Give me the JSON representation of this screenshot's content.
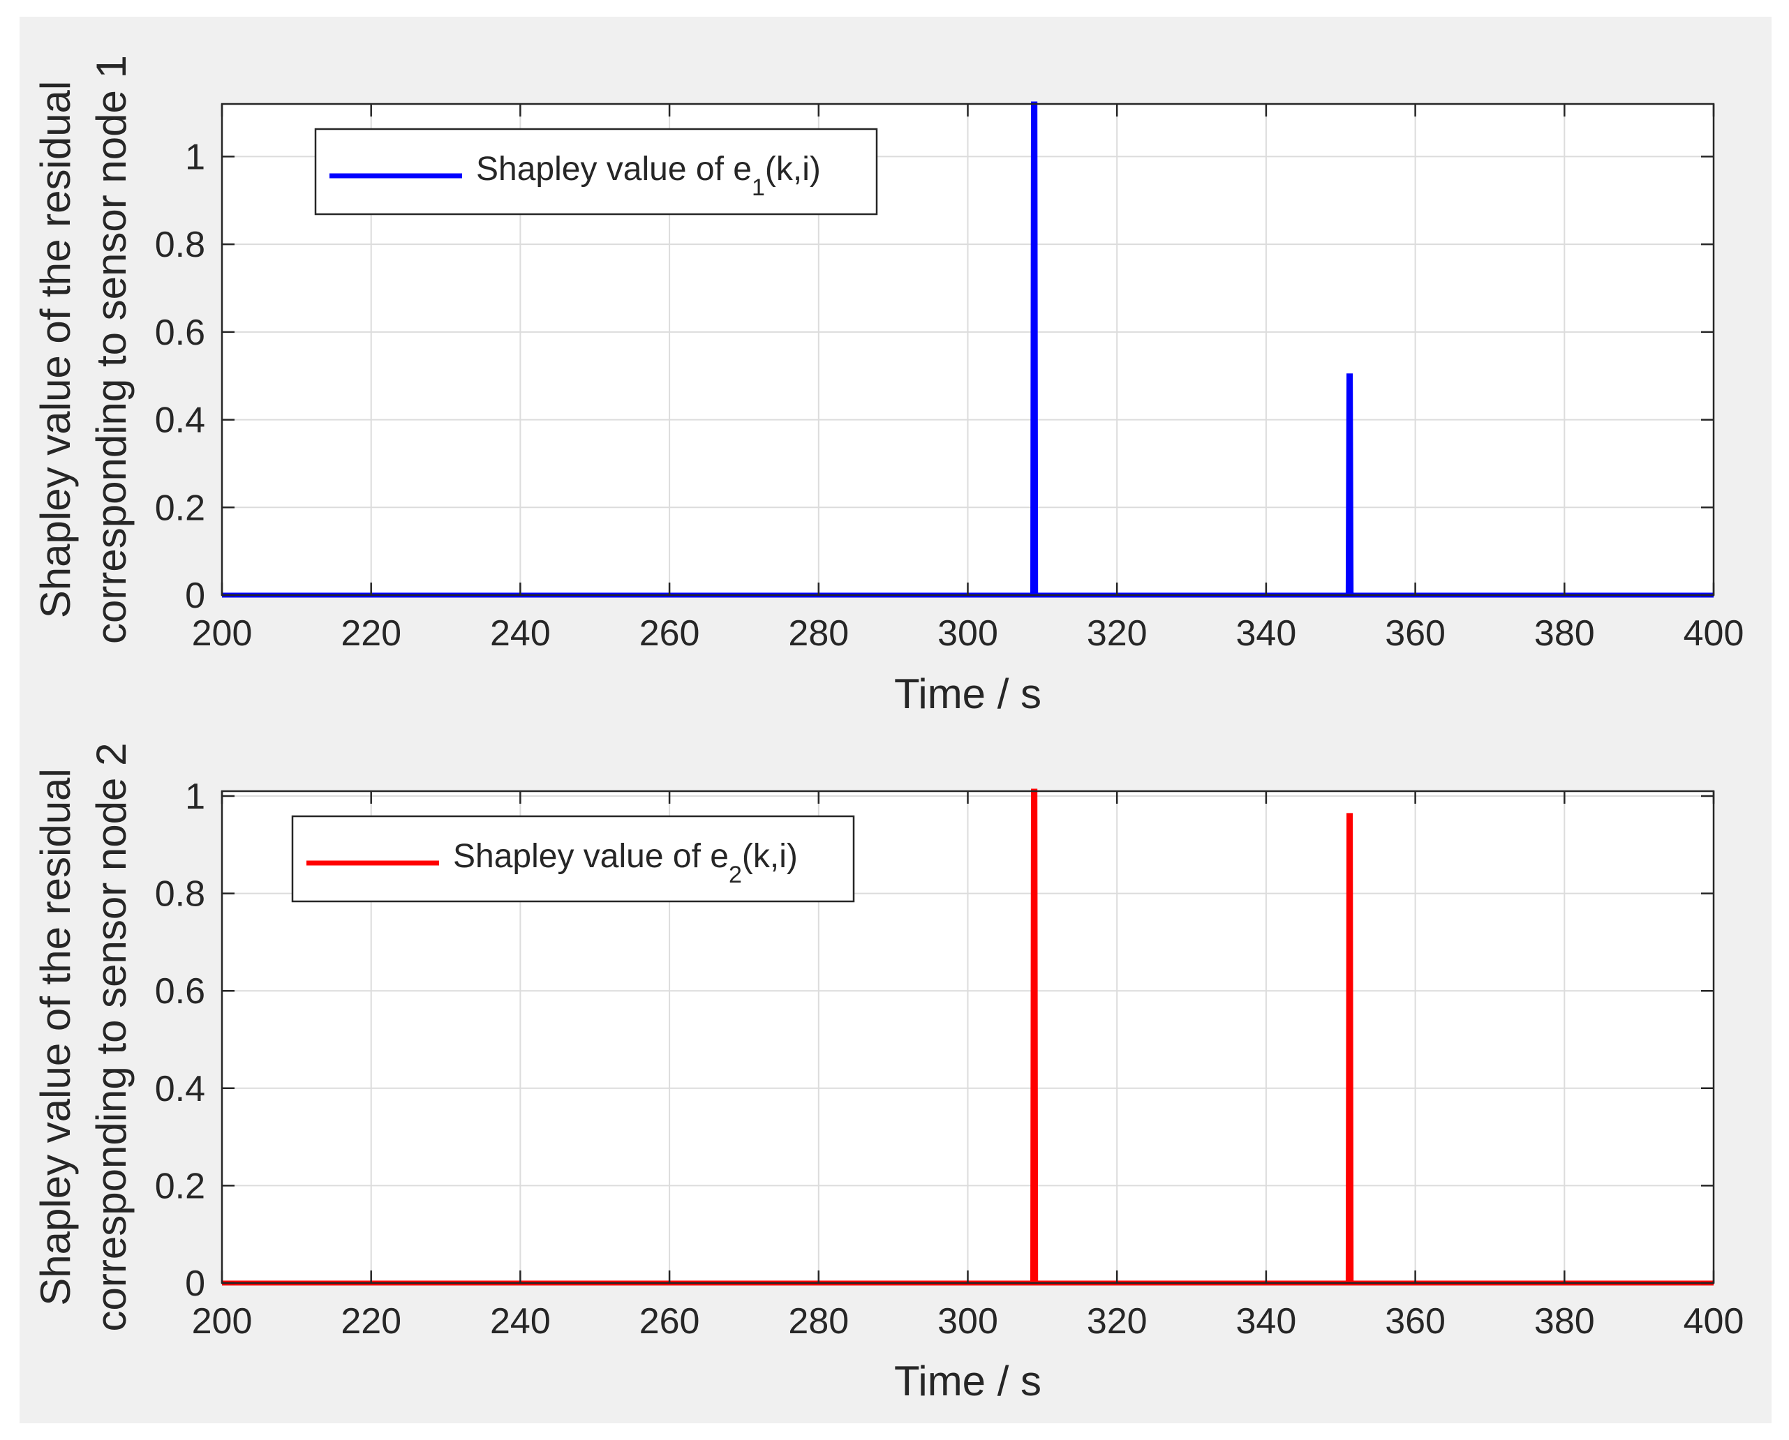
{
  "figure": {
    "background": "#f0f0f0",
    "plot_background": "#ffffff"
  },
  "chart_data": [
    {
      "type": "line",
      "title": "",
      "xlabel": "Time / s",
      "ylabel_line1": "Shapley value of the residual",
      "ylabel_line2": "corresponding to sensor node 1",
      "xlim": [
        200,
        400
      ],
      "ylim": [
        0,
        1.12
      ],
      "xticks": [
        200,
        220,
        240,
        260,
        280,
        300,
        320,
        340,
        360,
        380,
        400
      ],
      "xtick_labels": [
        "200",
        "220",
        "240",
        "260",
        "280",
        "300",
        "320",
        "340",
        "360",
        "380",
        "400"
      ],
      "yticks": [
        0,
        0.2,
        0.4,
        0.6,
        0.8,
        1
      ],
      "ytick_labels": [
        "0",
        "0.2",
        "0.4",
        "0.6",
        "0.8",
        "1"
      ],
      "grid": true,
      "legend_position": "top-left",
      "legend": {
        "prefix": "Shapley value of e",
        "subscript": "1",
        "suffix": "(k,i)"
      },
      "series": [
        {
          "name": "Shapley value of e1(k,i)",
          "color": "#0000ff",
          "x": [
            200,
            308.7,
            308.8,
            309.0,
            309.1,
            351.0,
            351.1,
            351.3,
            351.4,
            400
          ],
          "y": [
            0,
            0,
            1.12,
            1.12,
            0,
            0,
            0.5,
            0.5,
            0,
            0
          ]
        }
      ]
    },
    {
      "type": "line",
      "title": "",
      "xlabel": "Time / s",
      "ylabel_line1": "Shapley value of the residual",
      "ylabel_line2": "corresponding to sensor node 2",
      "xlim": [
        200,
        400
      ],
      "ylim": [
        0,
        1.01
      ],
      "xticks": [
        200,
        220,
        240,
        260,
        280,
        300,
        320,
        340,
        360,
        380,
        400
      ],
      "xtick_labels": [
        "200",
        "220",
        "240",
        "260",
        "280",
        "300",
        "320",
        "340",
        "360",
        "380",
        "400"
      ],
      "yticks": [
        0,
        0.2,
        0.4,
        0.6,
        0.8,
        1
      ],
      "ytick_labels": [
        "0",
        "0.2",
        "0.4",
        "0.6",
        "0.8",
        "1"
      ],
      "grid": true,
      "legend_position": "top-left",
      "legend": {
        "prefix": "Shapley value of e",
        "subscript": "2",
        "suffix": "(k,i)"
      },
      "series": [
        {
          "name": "Shapley value of e2(k,i)",
          "color": "#ff0000",
          "x": [
            200,
            308.7,
            308.8,
            309.0,
            309.1,
            351.0,
            351.1,
            351.3,
            351.4,
            400
          ],
          "y": [
            0,
            0,
            1.01,
            1.01,
            0,
            0,
            0.96,
            0.96,
            0,
            0
          ]
        }
      ]
    }
  ]
}
